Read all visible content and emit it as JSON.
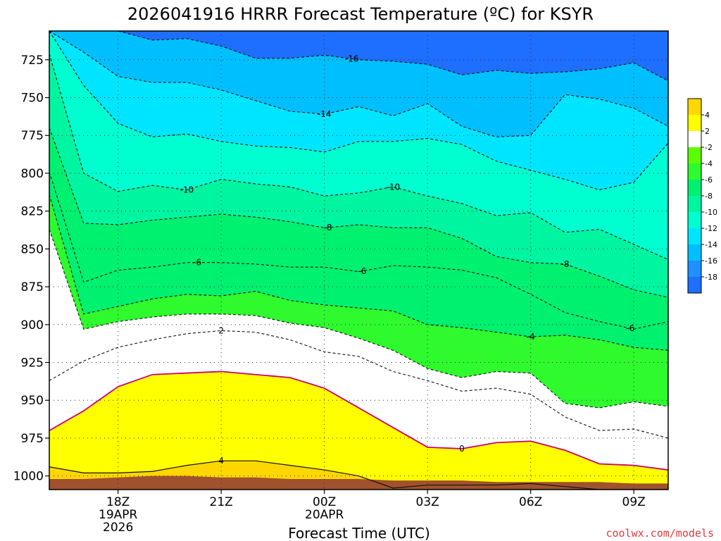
{
  "title": "2026041916 HRRR Forecast Temperature (ºC) for KSYR",
  "credit": "coolwx.com/models",
  "chart_data": {
    "type": "heatmap",
    "title": "2026041916 HRRR Forecast Temperature (ºC) for KSYR",
    "xlabel": "Forecast Time (UTC)",
    "ylabel": "",
    "x_range_hours_utc": [
      16,
      34
    ],
    "y_range_hpa": [
      1009,
      706
    ],
    "y_ticks": [
      "725",
      "750",
      "775",
      "800",
      "825",
      "850",
      "875",
      "900",
      "925",
      "950",
      "975",
      "1000"
    ],
    "x_ticks": [
      {
        "label": "18Z",
        "date": "19APR",
        "year": "2026"
      },
      {
        "label": "21Z",
        "date": "",
        "year": ""
      },
      {
        "label": "00Z",
        "date": "20APR",
        "year": ""
      },
      {
        "label": "03Z",
        "date": "",
        "year": ""
      },
      {
        "label": "06Z",
        "date": "",
        "year": ""
      },
      {
        "label": "09Z",
        "date": "",
        "year": ""
      }
    ],
    "grid": true,
    "colorbar_labels": [
      "4",
      "2",
      "-2",
      "-4",
      "-6",
      "-8",
      "-10",
      "-12",
      "-14",
      "-16",
      "-18"
    ],
    "contour_labels": [
      "-16",
      "-14",
      "-10",
      "-10",
      "-8",
      "-8",
      "-6",
      "-6",
      "-6",
      "-4",
      "2",
      "0",
      "4"
    ],
    "contours_hours": [
      16,
      17,
      18,
      19,
      20,
      21,
      22,
      23,
      24,
      25,
      26,
      27,
      28,
      29,
      30,
      31,
      32,
      33,
      34
    ],
    "contours": [
      {
        "level": -16,
        "p": [
          706,
          706,
          706,
          712,
          711,
          716,
          724,
          724,
          722,
          725,
          726,
          728,
          735,
          732,
          734,
          733,
          731,
          727,
          739
        ]
      },
      {
        "level": -14,
        "p": [
          706,
          720,
          736,
          740,
          740,
          745,
          752,
          759,
          761,
          756,
          762,
          754,
          769,
          776,
          775,
          748,
          751,
          757,
          769
        ]
      },
      {
        "level": -12,
        "p": [
          706,
          742,
          767,
          776,
          774,
          779,
          782,
          783,
          786,
          779,
          779,
          777,
          781,
          792,
          798,
          804,
          811,
          806,
          780
        ]
      },
      {
        "level": -10,
        "p": [
          721,
          800,
          812,
          808,
          811,
          804,
          807,
          809,
          815,
          813,
          809,
          815,
          820,
          828,
          826,
          839,
          837,
          847,
          857
        ]
      },
      {
        "level": -8,
        "p": [
          770,
          833,
          834,
          831,
          829,
          827,
          829,
          832,
          836,
          834,
          836,
          836,
          843,
          855,
          859,
          860,
          868,
          877,
          882
        ]
      },
      {
        "level": -6,
        "p": [
          799,
          872,
          864,
          862,
          859,
          859,
          860,
          862,
          862,
          865,
          861,
          862,
          864,
          869,
          880,
          892,
          898,
          903,
          898
        ]
      },
      {
        "level": -4,
        "p": [
          814,
          893,
          888,
          883,
          880,
          881,
          878,
          884,
          887,
          889,
          891,
          900,
          902,
          905,
          908,
          907,
          910,
          915,
          917
        ]
      },
      {
        "level": -2,
        "p": [
          837,
          903,
          898,
          895,
          893,
          893,
          894,
          899,
          902,
          909,
          917,
          929,
          935,
          931,
          932,
          952,
          955,
          951,
          954
        ]
      },
      {
        "level": 2,
        "p": [
          937,
          924,
          915,
          910,
          906,
          904,
          905,
          910,
          918,
          921,
          931,
          937,
          944,
          942,
          946,
          961,
          970,
          969,
          975
        ]
      },
      {
        "level": 0,
        "p": [
          970,
          957,
          941,
          933,
          932,
          931,
          933,
          935,
          942,
          955,
          968,
          981,
          982,
          978,
          977,
          983,
          992,
          993,
          996
        ]
      },
      {
        "level": 4,
        "p": [
          994,
          998,
          998,
          997,
          993,
          990,
          990,
          993,
          996,
          1000,
          1008,
          1006,
          1006,
          1006,
          1005,
          1007,
          1009,
          1009,
          1009
        ]
      }
    ],
    "surface_top_hpa": [
      1002,
      1002,
      1001,
      1000,
      1000,
      1001,
      1001,
      1002,
      1002,
      1002,
      1003,
      1003,
      1003,
      1004,
      1004,
      1004,
      1004,
      1005,
      1005
    ],
    "palette": {
      "-18": "#1e6eff",
      "-16": "#1e90ff",
      "-14": "#00bfff",
      "-12": "#00e5ff",
      "-10": "#00ffd0",
      "-8": "#00f5a0",
      "-6": "#00f070",
      "-4": "#2efa2e",
      "-2": "#5cff00",
      "0": "#ffffff",
      "2": "#ffff00",
      "4": "#ffd700",
      "surface": "#a0522d",
      "contour": "#111111",
      "zero_contour": "#c8007a"
    }
  }
}
